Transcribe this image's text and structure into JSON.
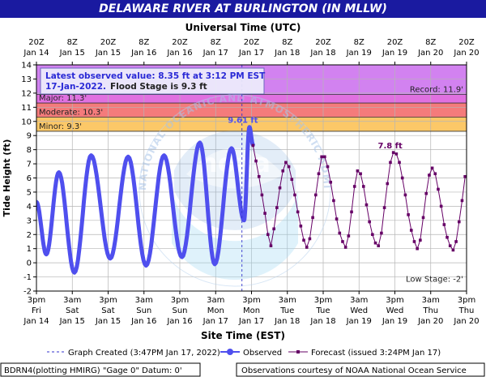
{
  "title": "DELAWARE RIVER AT BURLINGTON (IN MLLW)",
  "top_axis_title": "Universal Time (UTC)",
  "bottom_axis_title": "Site Time (EST)",
  "y_axis_title": "Tide Height (ft)",
  "info_box": {
    "line1": "Latest observed value: 8.35 ft at 3:12 PM EST",
    "line2_date": "17-Jan-2022.",
    "line2_flood": "Flood Stage is 9.3 ft"
  },
  "stages": [
    {
      "name": "Record",
      "label": "Record: 11.9'",
      "value": 11.9,
      "color": "#d282f0",
      "from": 11.9,
      "to": 14.0
    },
    {
      "name": "Major",
      "label": "Major: 11.3'",
      "value": 11.3,
      "color": "#e070e0",
      "from": 11.3,
      "to": 11.9
    },
    {
      "name": "Moderate",
      "label": "Moderate: 10.3'",
      "value": 10.3,
      "color": "#f47b7b",
      "from": 10.3,
      "to": 11.3
    },
    {
      "name": "Minor",
      "label": "Minor: 9.3'",
      "value": 9.3,
      "color": "#fcc868",
      "from": 9.3,
      "to": 10.3
    }
  ],
  "low_stage_label": "Low Stage: -2'",
  "peak_labels": {
    "observed": "9.61 ft",
    "forecast": "7.8 ft"
  },
  "legend": {
    "graph_created": "Graph Created (3:47PM Jan 17, 2022)",
    "observed": "Observed",
    "forecast": "Forecast (issued 3:24PM Jan 17)"
  },
  "footer": {
    "left": "BDRN4(plotting HMIRG) \"Gage 0\" Datum: 0'",
    "right": "Observations courtesy of NOAA National Ocean Service"
  },
  "watermark": "NATIONAL OCEANIC AND ATMOSPHERIC ADMINISTRATION · U.S. DEPARTMENT OF COMMERCE",
  "colors": {
    "observed": "#4f4fee",
    "forecast": "#660066",
    "title_bar": "#1a1aa0",
    "text": "#1a1aa0"
  },
  "chart_data": {
    "type": "line",
    "x_unit": "hours after Jan 14 3pm EST (Jan 14 20Z)",
    "xlim": [
      0,
      144
    ],
    "ylim": [
      -2,
      14
    ],
    "y_ticks": [
      -2,
      -1,
      0,
      1,
      2,
      3,
      4,
      5,
      6,
      7,
      8,
      9,
      10,
      11,
      12,
      13,
      14
    ],
    "top_ticks": [
      {
        "x": 0,
        "l1": "20Z",
        "l2": "Jan 14"
      },
      {
        "x": 12,
        "l1": "8Z",
        "l2": "Jan 15"
      },
      {
        "x": 24,
        "l1": "20Z",
        "l2": "Jan 15"
      },
      {
        "x": 36,
        "l1": "8Z",
        "l2": "Jan 16"
      },
      {
        "x": 48,
        "l1": "20Z",
        "l2": "Jan 16"
      },
      {
        "x": 60,
        "l1": "8Z",
        "l2": "Jan 17"
      },
      {
        "x": 72,
        "l1": "20Z",
        "l2": "Jan 17"
      },
      {
        "x": 84,
        "l1": "8Z",
        "l2": "Jan 18"
      },
      {
        "x": 96,
        "l1": "20Z",
        "l2": "Jan 18"
      },
      {
        "x": 108,
        "l1": "8Z",
        "l2": "Jan 19"
      },
      {
        "x": 120,
        "l1": "20Z",
        "l2": "Jan 19"
      },
      {
        "x": 132,
        "l1": "8Z",
        "l2": "Jan 20"
      },
      {
        "x": 144,
        "l1": "20Z",
        "l2": "Jan 20"
      }
    ],
    "bottom_ticks": [
      {
        "x": 0,
        "l1": "3pm",
        "l2": "Fri",
        "l3": "Jan 14"
      },
      {
        "x": 12,
        "l1": "3am",
        "l2": "Sat",
        "l3": "Jan 15"
      },
      {
        "x": 24,
        "l1": "3pm",
        "l2": "Sat",
        "l3": "Jan 15"
      },
      {
        "x": 36,
        "l1": "3am",
        "l2": "Sun",
        "l3": "Jan 16"
      },
      {
        "x": 48,
        "l1": "3pm",
        "l2": "Sun",
        "l3": "Jan 16"
      },
      {
        "x": 60,
        "l1": "3am",
        "l2": "Mon",
        "l3": "Jan 17"
      },
      {
        "x": 72,
        "l1": "3pm",
        "l2": "Mon",
        "l3": "Jan 17"
      },
      {
        "x": 84,
        "l1": "3am",
        "l2": "Tue",
        "l3": "Jan 18"
      },
      {
        "x": 96,
        "l1": "3pm",
        "l2": "Tue",
        "l3": "Jan 18"
      },
      {
        "x": 108,
        "l1": "3am",
        "l2": "Wed",
        "l3": "Jan 19"
      },
      {
        "x": 120,
        "l1": "3pm",
        "l2": "Wed",
        "l3": "Jan 19"
      },
      {
        "x": 132,
        "l1": "3am",
        "l2": "Thu",
        "l3": "Jan 20"
      },
      {
        "x": 144,
        "l1": "3pm",
        "l2": "Thu",
        "l3": "Jan 20"
      }
    ],
    "graph_created_x": 68.8,
    "observed_extrema": [
      [
        0,
        4.3
      ],
      [
        3.3,
        0.6
      ],
      [
        7.5,
        6.4
      ],
      [
        12.7,
        -0.7
      ],
      [
        18.3,
        7.6
      ],
      [
        24.7,
        0.3
      ],
      [
        30.7,
        7.5
      ],
      [
        36.7,
        -0.2
      ],
      [
        42.7,
        7.6
      ],
      [
        48.7,
        0.4
      ],
      [
        54.7,
        8.5
      ],
      [
        59.7,
        -0.1
      ],
      [
        65.3,
        8.1
      ],
      [
        69.5,
        3.0
      ],
      [
        71.3,
        9.6
      ],
      [
        72.5,
        8.35
      ]
    ],
    "forecast_points": [
      [
        72.5,
        8.3
      ],
      [
        73.5,
        7.2
      ],
      [
        74.5,
        6.1
      ],
      [
        75.5,
        4.8
      ],
      [
        76.5,
        3.5
      ],
      [
        77.5,
        2.0
      ],
      [
        78.5,
        1.2
      ],
      [
        79.5,
        2.4
      ],
      [
        80.5,
        3.9
      ],
      [
        81.5,
        5.3
      ],
      [
        82.5,
        6.5
      ],
      [
        83.5,
        7.1
      ],
      [
        84.5,
        6.8
      ],
      [
        85.5,
        5.9
      ],
      [
        86.5,
        4.8
      ],
      [
        87.5,
        3.6
      ],
      [
        88.5,
        2.6
      ],
      [
        89.5,
        1.6
      ],
      [
        90.5,
        1.1
      ],
      [
        91.5,
        1.7
      ],
      [
        92.5,
        3.2
      ],
      [
        93.5,
        4.8
      ],
      [
        94.5,
        6.3
      ],
      [
        95.5,
        7.5
      ],
      [
        96.5,
        7.5
      ],
      [
        97.5,
        6.8
      ],
      [
        98.5,
        5.7
      ],
      [
        99.5,
        4.4
      ],
      [
        100.5,
        3.1
      ],
      [
        101.5,
        2.1
      ],
      [
        102.5,
        1.5
      ],
      [
        103.5,
        1.1
      ],
      [
        104.5,
        1.9
      ],
      [
        105.5,
        3.6
      ],
      [
        106.5,
        5.4
      ],
      [
        107.5,
        6.5
      ],
      [
        108.5,
        6.3
      ],
      [
        109.5,
        5.4
      ],
      [
        110.5,
        4.1
      ],
      [
        111.5,
        2.9
      ],
      [
        112.5,
        2.0
      ],
      [
        113.5,
        1.4
      ],
      [
        114.5,
        1.2
      ],
      [
        115.5,
        2.1
      ],
      [
        116.5,
        3.9
      ],
      [
        117.5,
        5.6
      ],
      [
        118.5,
        7.1
      ],
      [
        119.5,
        7.8
      ],
      [
        120.5,
        7.7
      ],
      [
        121.5,
        7.1
      ],
      [
        122.5,
        6.0
      ],
      [
        123.5,
        4.8
      ],
      [
        124.5,
        3.4
      ],
      [
        125.5,
        2.3
      ],
      [
        126.5,
        1.5
      ],
      [
        127.5,
        1.0
      ],
      [
        128.5,
        1.6
      ],
      [
        129.5,
        3.2
      ],
      [
        130.5,
        4.9
      ],
      [
        131.5,
        6.2
      ],
      [
        132.5,
        6.7
      ],
      [
        133.5,
        6.3
      ],
      [
        134.5,
        5.2
      ],
      [
        135.5,
        4.0
      ],
      [
        136.5,
        2.7
      ],
      [
        137.5,
        1.8
      ],
      [
        138.5,
        1.2
      ],
      [
        139.5,
        0.9
      ],
      [
        140.5,
        1.5
      ],
      [
        141.5,
        2.9
      ],
      [
        142.5,
        4.4
      ],
      [
        143.5,
        6.1
      ]
    ],
    "observed_peak": {
      "x": 71.3,
      "y": 9.61
    },
    "forecast_peak": {
      "x": 119.5,
      "y": 7.8
    }
  }
}
